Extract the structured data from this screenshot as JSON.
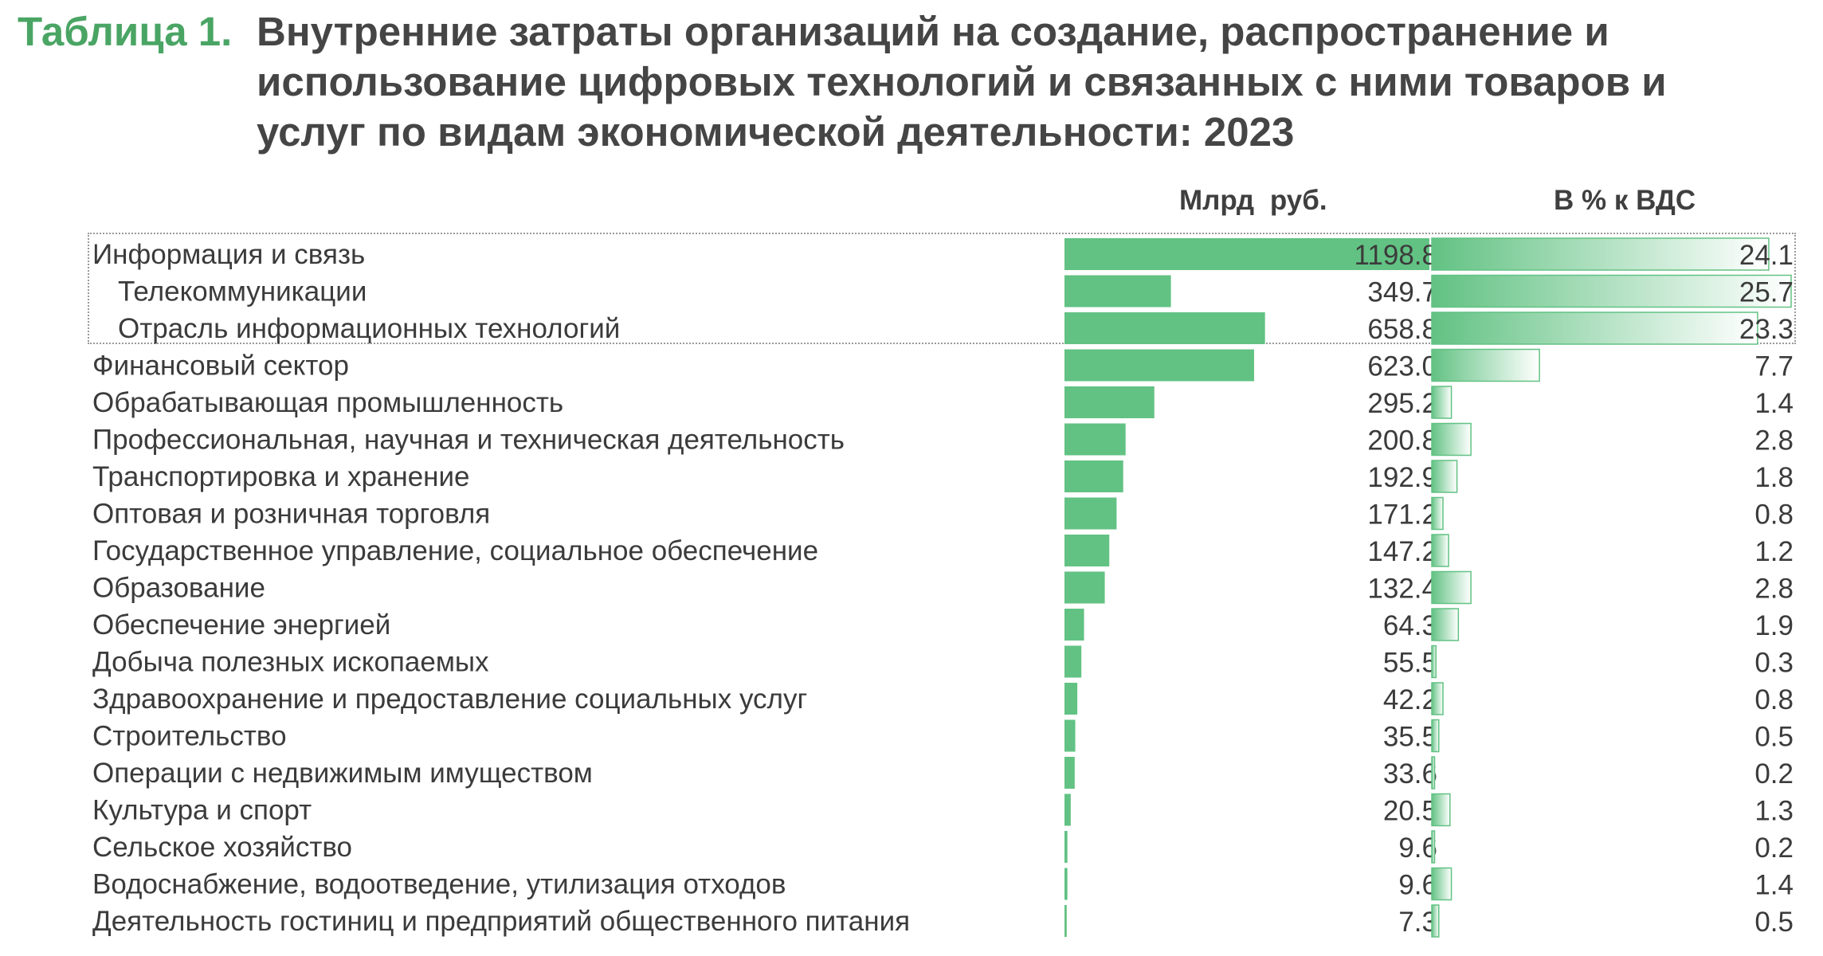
{
  "title": {
    "label": "Таблица 1.",
    "text": "Внутренние затраты организаций на создание, распространение и использование цифровых технологий и связанных с ними товаров и услуг по видам экономической деятельности: 2023"
  },
  "chart_data": {
    "type": "bar",
    "orientation": "horizontal",
    "title": "Внутренние затраты организаций на создание, распространение и использование цифровых технологий и связанных с ними товаров и услуг по видам экономической деятельности: 2023",
    "categories": [
      "Информация и связь",
      "Телекоммуникации",
      "Отрасль информационных технологий",
      "Финансовый сектор",
      "Обрабатывающая промышленность",
      "Профессиональная, научная и техническая деятельность",
      "Транспортировка и хранение",
      "Оптовая и розничная торговля",
      "Государственное управление, социальное обеспечение",
      "Образование",
      "Обеспечение энергией",
      "Добыча полезных ископаемых",
      "Здравоохранение и предоставление социальных услуг",
      "Строительство",
      "Операции с недвижимым имуществом",
      "Культура и спорт",
      "Сельское хозяйство",
      "Водоснабжение, водоотведение, утилизация отходов",
      "Деятельность гостиниц и предприятий общественного питания"
    ],
    "indent": [
      false,
      true,
      true,
      false,
      false,
      false,
      false,
      false,
      false,
      false,
      false,
      false,
      false,
      false,
      false,
      false,
      false,
      false,
      false
    ],
    "series": [
      {
        "name": "Млрд руб.",
        "values": [
          1198.8,
          349.7,
          658.8,
          623.0,
          295.2,
          200.8,
          192.9,
          171.2,
          147.2,
          132.4,
          64.3,
          55.5,
          42.2,
          35.5,
          33.6,
          20.5,
          9.6,
          9.6,
          7.3
        ],
        "labels": [
          "1198.8",
          "349.7",
          "658.8",
          "623.0",
          "295.2",
          "200.8",
          "192.9",
          "171.2",
          "147.2",
          "132.4",
          "64.3",
          "55.5",
          "42.2",
          "35.5",
          "33.6",
          "20.5",
          "9.6",
          "9.6",
          "7.3"
        ],
        "xlim": [
          0,
          1198.8
        ],
        "color": "#62c283"
      },
      {
        "name": "В % к ВДС",
        "values": [
          24.1,
          25.7,
          23.3,
          7.7,
          1.4,
          2.8,
          1.8,
          0.8,
          1.2,
          2.8,
          1.9,
          0.3,
          0.8,
          0.5,
          0.2,
          1.3,
          0.2,
          1.4,
          0.5
        ],
        "labels": [
          "24.1",
          "25.7",
          "23.3",
          "7.7",
          "1.4",
          "2.8",
          "1.8",
          "0.8",
          "1.2",
          "2.8",
          "1.9",
          "0.3",
          "0.8",
          "0.5",
          "0.2",
          "1.3",
          "0.2",
          "1.4",
          "0.5"
        ],
        "xlim": [
          0,
          25.7
        ],
        "color": "#62c283",
        "gradient_end": "#ffffff"
      }
    ],
    "grid": false,
    "legend": "none"
  }
}
